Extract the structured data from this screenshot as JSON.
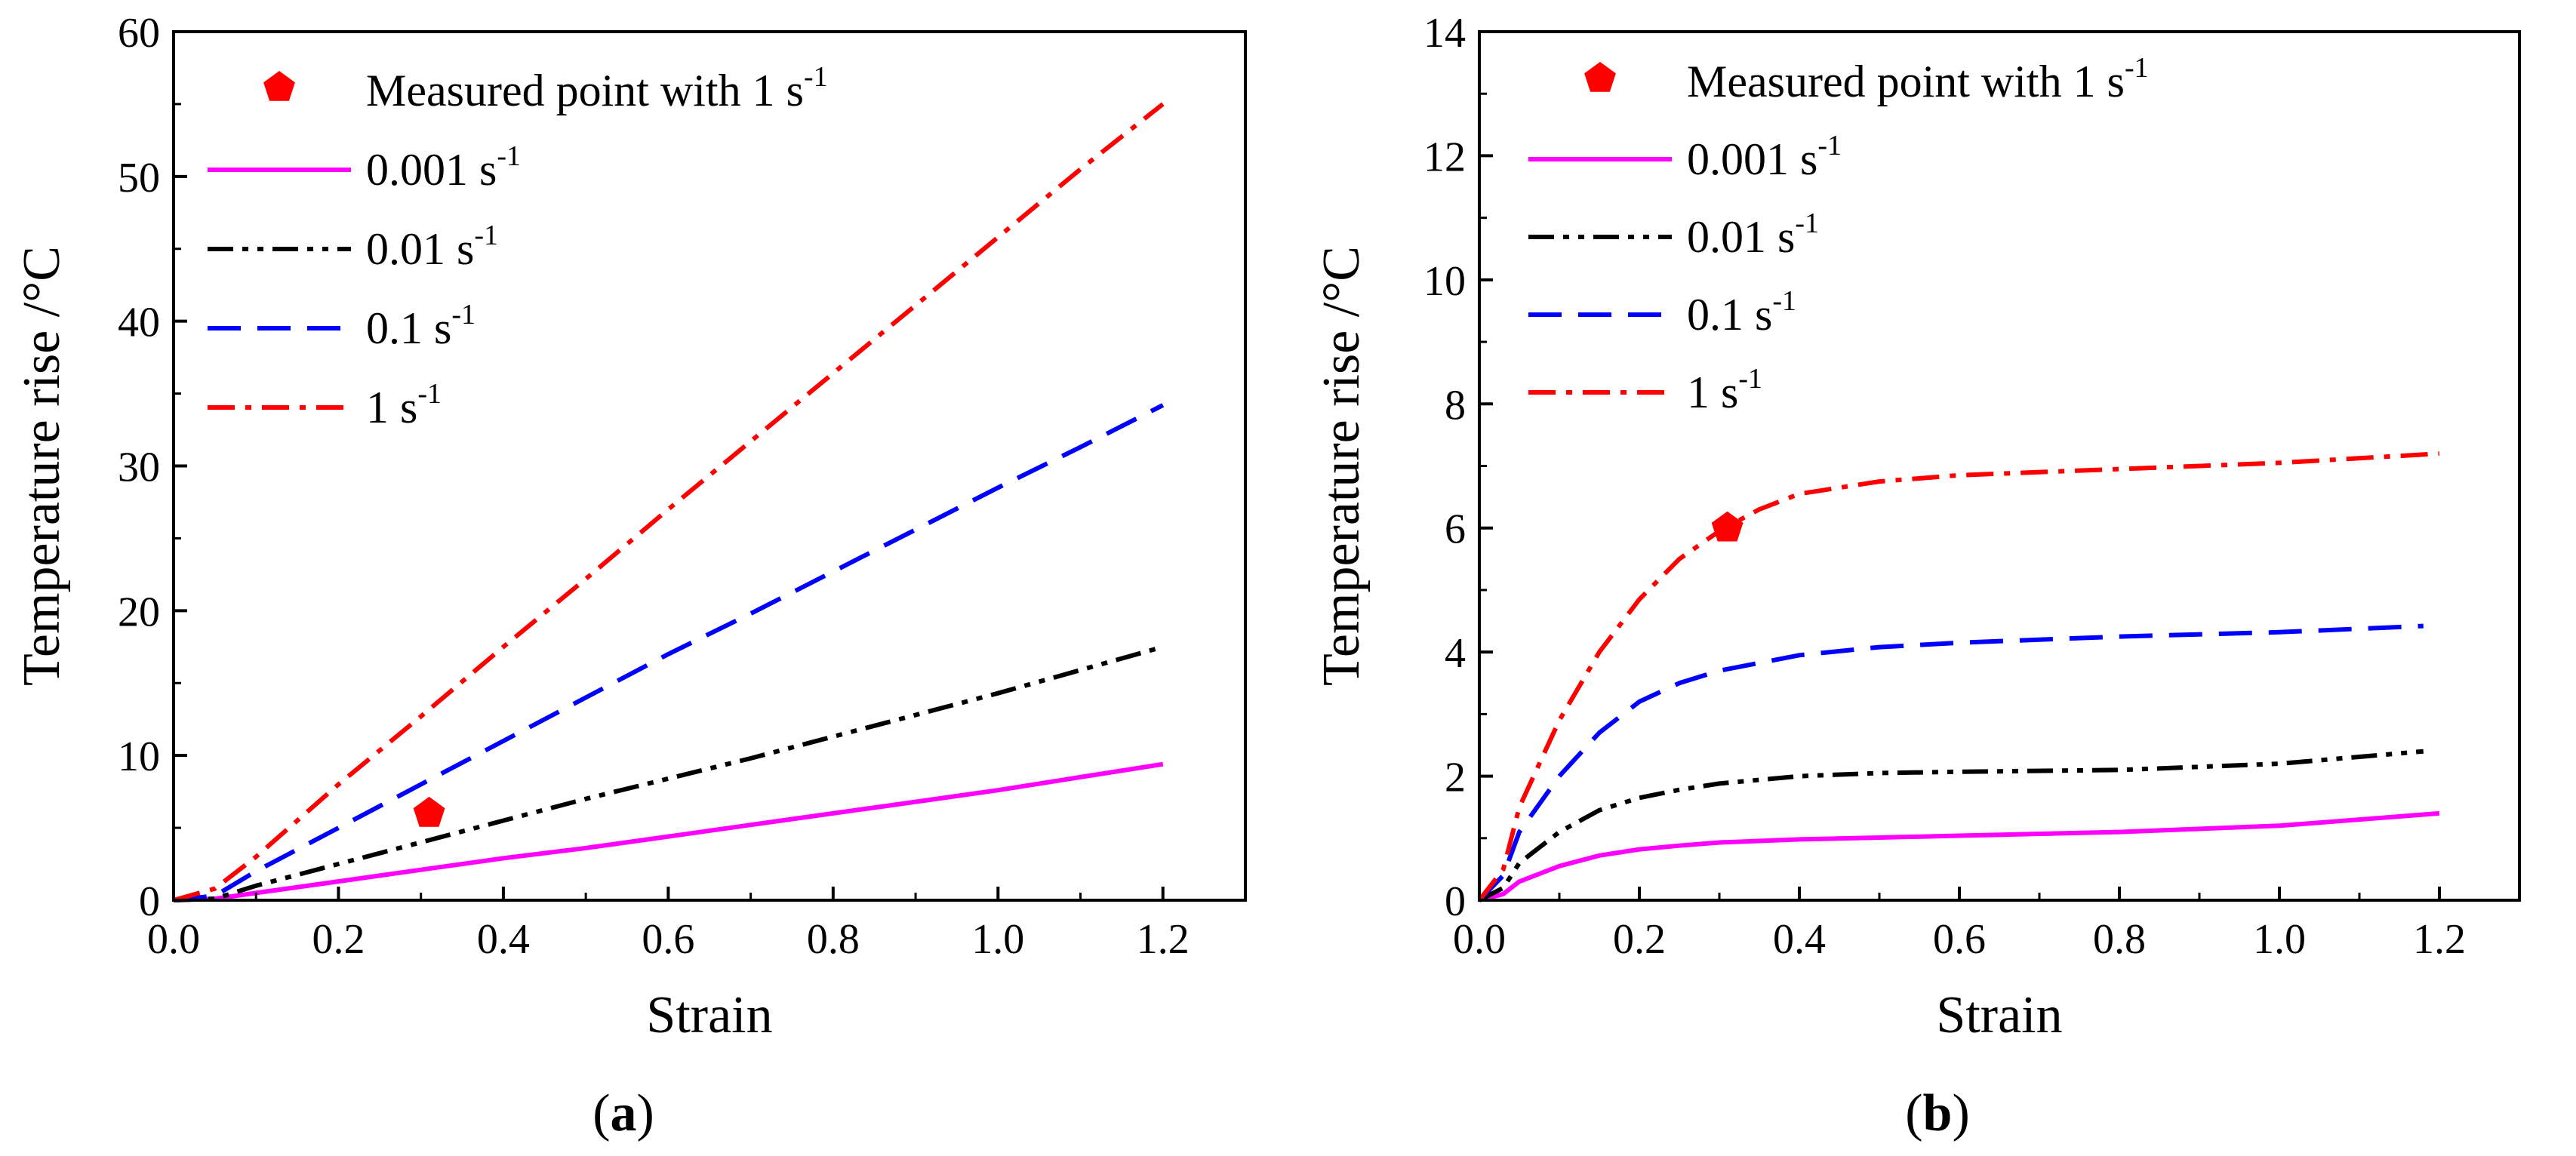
{
  "chart_data": [
    {
      "panel_label": "(a)",
      "panel_letter": "a",
      "type": "line",
      "xlabel": "Strain",
      "ylabel": "Temperature rise /°C",
      "xlim": [
        0.0,
        1.3
      ],
      "ylim": [
        0,
        60
      ],
      "x_ticks": [
        "0.0",
        "0.2",
        "0.4",
        "0.6",
        "0.8",
        "1.0",
        "1.2"
      ],
      "y_ticks": [
        "0",
        "10",
        "20",
        "30",
        "40",
        "50",
        "60"
      ],
      "legend": [
        {
          "label": "Measured point with 1 s",
          "sup": "-1",
          "marker": "pentagon",
          "color": "#ff0000"
        },
        {
          "label": "0.001 s",
          "sup": "-1",
          "dash": "solid",
          "color": "#ff00ff"
        },
        {
          "label": "0.01 s",
          "sup": "-1",
          "dash": "dashdotdot",
          "color": "#000000"
        },
        {
          "label": "0.1 s",
          "sup": "-1",
          "dash": "dash",
          "color": "#0000ff"
        },
        {
          "label": "1 s",
          "sup": "-1",
          "dash": "dashdot",
          "color": "#ff0000"
        }
      ],
      "series": [
        {
          "name": "0.001 s-1",
          "color": "#ff00ff",
          "dash": "solid",
          "x": [
            0.0,
            0.05,
            0.1,
            0.2,
            0.3,
            0.4,
            0.5,
            0.6,
            0.7,
            0.8,
            0.9,
            1.0,
            1.1,
            1.2
          ],
          "y": [
            0.0,
            0.1,
            0.5,
            1.3,
            2.1,
            2.9,
            3.6,
            4.4,
            5.2,
            6.0,
            6.8,
            7.6,
            8.5,
            9.4
          ]
        },
        {
          "name": "0.01 s-1",
          "color": "#000000",
          "dash": "dashdotdot",
          "x": [
            0.0,
            0.05,
            0.1,
            0.2,
            0.3,
            0.4,
            0.5,
            0.6,
            0.7,
            0.8,
            0.9,
            1.0,
            1.1,
            1.2
          ],
          "y": [
            0.0,
            0.1,
            1.0,
            2.5,
            4.0,
            5.5,
            7.0,
            8.4,
            9.8,
            11.3,
            12.8,
            14.3,
            15.9,
            17.5
          ]
        },
        {
          "name": "0.1 s-1",
          "color": "#0000ff",
          "dash": "dash",
          "x": [
            0.0,
            0.05,
            0.1,
            0.2,
            0.3,
            0.4,
            0.5,
            0.6,
            0.7,
            0.8,
            0.9,
            1.0,
            1.1,
            1.2
          ],
          "y": [
            0.0,
            0.3,
            2.0,
            5.0,
            8.0,
            11.0,
            14.0,
            17.0,
            19.8,
            22.7,
            25.6,
            28.5,
            31.3,
            34.2
          ]
        },
        {
          "name": "1 s-1",
          "color": "#ff0000",
          "dash": "dashdot",
          "x": [
            0.0,
            0.05,
            0.1,
            0.2,
            0.3,
            0.4,
            0.5,
            0.6,
            0.7,
            0.8,
            0.9,
            1.0,
            1.1,
            1.2
          ],
          "y": [
            0.0,
            0.8,
            3.0,
            8.0,
            12.7,
            17.5,
            22.2,
            27.0,
            31.7,
            36.4,
            41.1,
            45.8,
            50.5,
            55.0
          ]
        }
      ],
      "measured_point": {
        "x": 0.31,
        "y": 6.0,
        "color": "#ff0000"
      }
    },
    {
      "panel_label": "(b)",
      "panel_letter": "b",
      "type": "line",
      "xlabel": "Strain",
      "ylabel": "Temperature rise /°C",
      "xlim": [
        0.0,
        1.3
      ],
      "ylim": [
        0,
        14
      ],
      "x_ticks": [
        "0.0",
        "0.2",
        "0.4",
        "0.6",
        "0.8",
        "1.0",
        "1.2"
      ],
      "y_ticks": [
        "0",
        "2",
        "4",
        "6",
        "8",
        "10",
        "12",
        "14"
      ],
      "legend": [
        {
          "label": "Measured point with 1 s",
          "sup": "-1",
          "marker": "pentagon",
          "color": "#ff0000"
        },
        {
          "label": "0.001 s",
          "sup": "-1",
          "dash": "solid",
          "color": "#ff00ff"
        },
        {
          "label": "0.01 s",
          "sup": "-1",
          "dash": "dashdotdot",
          "color": "#000000"
        },
        {
          "label": "0.1 s",
          "sup": "-1",
          "dash": "dash",
          "color": "#0000ff"
        },
        {
          "label": "1 s",
          "sup": "-1",
          "dash": "dashdot",
          "color": "#ff0000"
        }
      ],
      "series": [
        {
          "name": "0.001 s-1",
          "color": "#ff00ff",
          "dash": "solid",
          "x": [
            0.0,
            0.03,
            0.05,
            0.1,
            0.15,
            0.2,
            0.25,
            0.3,
            0.4,
            0.5,
            0.6,
            0.8,
            1.0,
            1.2
          ],
          "y": [
            0.0,
            0.1,
            0.3,
            0.55,
            0.72,
            0.82,
            0.88,
            0.93,
            0.98,
            1.01,
            1.04,
            1.1,
            1.2,
            1.4
          ]
        },
        {
          "name": "0.01 s-1",
          "color": "#000000",
          "dash": "dashdotdot",
          "x": [
            0.0,
            0.03,
            0.05,
            0.1,
            0.15,
            0.2,
            0.25,
            0.3,
            0.4,
            0.5,
            0.6,
            0.8,
            1.0,
            1.18
          ],
          "y": [
            0.0,
            0.2,
            0.6,
            1.1,
            1.45,
            1.65,
            1.78,
            1.88,
            2.0,
            2.05,
            2.07,
            2.1,
            2.2,
            2.4
          ]
        },
        {
          "name": "0.1 s-1",
          "color": "#0000ff",
          "dash": "dash",
          "x": [
            0.0,
            0.03,
            0.05,
            0.1,
            0.15,
            0.2,
            0.25,
            0.3,
            0.4,
            0.5,
            0.6,
            0.8,
            1.0,
            1.18
          ],
          "y": [
            0.0,
            0.4,
            1.1,
            2.0,
            2.7,
            3.2,
            3.5,
            3.7,
            3.95,
            4.08,
            4.15,
            4.25,
            4.32,
            4.42
          ]
        },
        {
          "name": "1 s-1",
          "color": "#ff0000",
          "dash": "dashdot",
          "x": [
            0.0,
            0.03,
            0.05,
            0.1,
            0.15,
            0.2,
            0.25,
            0.3,
            0.35,
            0.4,
            0.5,
            0.6,
            0.8,
            1.0,
            1.2
          ],
          "y": [
            0.0,
            0.5,
            1.5,
            2.9,
            4.0,
            4.85,
            5.5,
            5.95,
            6.3,
            6.55,
            6.75,
            6.85,
            6.95,
            7.05,
            7.2
          ]
        }
      ],
      "measured_point": {
        "x": 0.31,
        "y": 6.0,
        "color": "#ff0000"
      }
    }
  ]
}
